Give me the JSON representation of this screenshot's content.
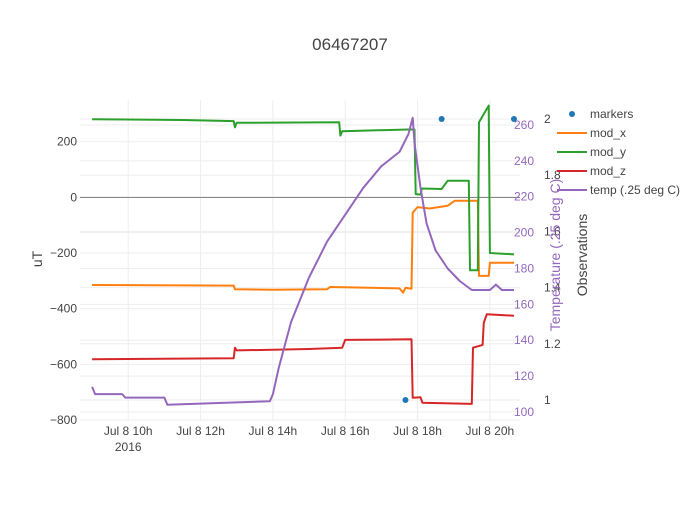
{
  "chart_data": {
    "type": "line",
    "title": "06467207",
    "x_axis": {
      "range": [
        "2016-07-08 08:40",
        "2016-07-08 20:50"
      ],
      "ticks": [
        {
          "t": "2016-07-08 10:00",
          "label": "Jul 8 10h",
          "sub": "2016"
        },
        {
          "t": "2016-07-08 12:00",
          "label": "Jul 8 12h",
          "sub": ""
        },
        {
          "t": "2016-07-08 14:00",
          "label": "Jul 8 14h",
          "sub": ""
        },
        {
          "t": "2016-07-08 16:00",
          "label": "Jul 8 16h",
          "sub": ""
        },
        {
          "t": "2016-07-08 18:00",
          "label": "Jul 8 18h",
          "sub": ""
        },
        {
          "t": "2016-07-08 20:00",
          "label": "Jul 8 20h",
          "sub": ""
        }
      ]
    },
    "y_axis": {
      "title": "uT",
      "range": [
        -800,
        350
      ],
      "ticks": [
        -800,
        -600,
        -400,
        -200,
        0,
        200
      ],
      "tick_labels": [
        "−800",
        "−600",
        "−400",
        "−200",
        "0",
        "200"
      ]
    },
    "y2_axis": {
      "title": "Temperature (.25 deg C)",
      "range": [
        100,
        265
      ],
      "ticks": [
        100,
        120,
        140,
        160,
        180,
        200,
        220,
        240,
        260
      ]
    },
    "y3_axis": {
      "title": "Observations",
      "range": [
        1,
        2
      ],
      "ticks": [
        {
          "v": 1,
          "label": "1"
        },
        {
          "v": 1.2,
          "label": "1.2"
        },
        {
          "v": 1.4,
          "label": "1.4"
        },
        {
          "v": 1.6,
          "label": "1.6"
        },
        {
          "v": 1.8,
          "label": "1.8"
        },
        {
          "v": 2,
          "label": "2"
        }
      ]
    },
    "grid": true,
    "legend_position": "right",
    "series": [
      {
        "name": "markers",
        "mode": "markers",
        "axis": "y3",
        "color": "#1f77b4",
        "points": [
          {
            "t": "2016-07-08 17:40",
            "v": 1
          },
          {
            "t": "2016-07-08 18:40",
            "v": 2
          },
          {
            "t": "2016-07-08 20:40",
            "v": 2
          }
        ]
      },
      {
        "name": "mod_x",
        "axis": "y",
        "color": "#ff7f0e",
        "points": [
          {
            "t": "2016-07-08 09:00",
            "v": -315
          },
          {
            "t": "2016-07-08 12:55",
            "v": -317
          },
          {
            "t": "2016-07-08 12:57",
            "v": -330
          },
          {
            "t": "2016-07-08 14:00",
            "v": -332
          },
          {
            "t": "2016-07-08 15:30",
            "v": -330
          },
          {
            "t": "2016-07-08 15:35",
            "v": -322
          },
          {
            "t": "2016-07-08 17:30",
            "v": -327
          },
          {
            "t": "2016-07-08 17:36",
            "v": -342
          },
          {
            "t": "2016-07-08 17:40",
            "v": -325
          },
          {
            "t": "2016-07-08 17:50",
            "v": -328
          },
          {
            "t": "2016-07-08 17:52",
            "v": -55
          },
          {
            "t": "2016-07-08 18:00",
            "v": -35
          },
          {
            "t": "2016-07-08 18:20",
            "v": -40
          },
          {
            "t": "2016-07-08 18:50",
            "v": -30
          },
          {
            "t": "2016-07-08 19:02",
            "v": -12
          },
          {
            "t": "2016-07-08 19:40",
            "v": -12
          },
          {
            "t": "2016-07-08 19:42",
            "v": -282
          },
          {
            "t": "2016-07-08 19:58",
            "v": -282
          },
          {
            "t": "2016-07-08 20:00",
            "v": -235
          },
          {
            "t": "2016-07-08 20:40",
            "v": -235
          }
        ]
      },
      {
        "name": "mod_y",
        "axis": "y",
        "color": "#2ca02c",
        "points": [
          {
            "t": "2016-07-08 09:00",
            "v": 281
          },
          {
            "t": "2016-07-08 11:30",
            "v": 278
          },
          {
            "t": "2016-07-08 12:55",
            "v": 274
          },
          {
            "t": "2016-07-08 12:57",
            "v": 252
          },
          {
            "t": "2016-07-08 13:00",
            "v": 268
          },
          {
            "t": "2016-07-08 15:50",
            "v": 270
          },
          {
            "t": "2016-07-08 15:52",
            "v": 222
          },
          {
            "t": "2016-07-08 15:55",
            "v": 238
          },
          {
            "t": "2016-07-08 17:45",
            "v": 244
          },
          {
            "t": "2016-07-08 17:55",
            "v": 244
          },
          {
            "t": "2016-07-08 17:57",
            "v": 12
          },
          {
            "t": "2016-07-08 18:05",
            "v": 10
          },
          {
            "t": "2016-07-08 18:07",
            "v": 32
          },
          {
            "t": "2016-07-08 18:40",
            "v": 30
          },
          {
            "t": "2016-07-08 18:50",
            "v": 60
          },
          {
            "t": "2016-07-08 19:25",
            "v": 60
          },
          {
            "t": "2016-07-08 19:27",
            "v": -262
          },
          {
            "t": "2016-07-08 19:40",
            "v": -262
          },
          {
            "t": "2016-07-08 19:42",
            "v": 270
          },
          {
            "t": "2016-07-08 19:58",
            "v": 330
          },
          {
            "t": "2016-07-08 20:00",
            "v": -200
          },
          {
            "t": "2016-07-08 20:40",
            "v": -205
          }
        ]
      },
      {
        "name": "mod_z",
        "axis": "y",
        "color": "#d62728",
        "points": [
          {
            "t": "2016-07-08 09:00",
            "v": -582
          },
          {
            "t": "2016-07-08 12:55",
            "v": -578
          },
          {
            "t": "2016-07-08 12:57",
            "v": -540
          },
          {
            "t": "2016-07-08 13:00",
            "v": -550
          },
          {
            "t": "2016-07-08 15:00",
            "v": -545
          },
          {
            "t": "2016-07-08 15:55",
            "v": -540
          },
          {
            "t": "2016-07-08 16:00",
            "v": -512
          },
          {
            "t": "2016-07-08 17:50",
            "v": -510
          },
          {
            "t": "2016-07-08 17:52",
            "v": -720
          },
          {
            "t": "2016-07-08 18:05",
            "v": -718
          },
          {
            "t": "2016-07-08 18:08",
            "v": -738
          },
          {
            "t": "2016-07-08 19:30",
            "v": -742
          },
          {
            "t": "2016-07-08 19:32",
            "v": -540
          },
          {
            "t": "2016-07-08 19:48",
            "v": -530
          },
          {
            "t": "2016-07-08 19:50",
            "v": -450
          },
          {
            "t": "2016-07-08 19:55",
            "v": -420
          },
          {
            "t": "2016-07-08 20:40",
            "v": -425
          }
        ]
      },
      {
        "name": "temp (.25 deg C)",
        "axis": "y2",
        "color": "#9467bd",
        "points": [
          {
            "t": "2016-07-08 09:00",
            "v": 114
          },
          {
            "t": "2016-07-08 09:05",
            "v": 110
          },
          {
            "t": "2016-07-08 09:50",
            "v": 110
          },
          {
            "t": "2016-07-08 09:55",
            "v": 108
          },
          {
            "t": "2016-07-08 11:00",
            "v": 108
          },
          {
            "t": "2016-07-08 11:05",
            "v": 104
          },
          {
            "t": "2016-07-08 13:55",
            "v": 106
          },
          {
            "t": "2016-07-08 14:00",
            "v": 110
          },
          {
            "t": "2016-07-08 14:10",
            "v": 125
          },
          {
            "t": "2016-07-08 14:30",
            "v": 150
          },
          {
            "t": "2016-07-08 15:00",
            "v": 175
          },
          {
            "t": "2016-07-08 15:30",
            "v": 195
          },
          {
            "t": "2016-07-08 16:00",
            "v": 210
          },
          {
            "t": "2016-07-08 16:30",
            "v": 225
          },
          {
            "t": "2016-07-08 17:00",
            "v": 237
          },
          {
            "t": "2016-07-08 17:30",
            "v": 245
          },
          {
            "t": "2016-07-08 17:45",
            "v": 255
          },
          {
            "t": "2016-07-08 17:52",
            "v": 264
          },
          {
            "t": "2016-07-08 17:55",
            "v": 250
          },
          {
            "t": "2016-07-08 18:05",
            "v": 225
          },
          {
            "t": "2016-07-08 18:15",
            "v": 205
          },
          {
            "t": "2016-07-08 18:30",
            "v": 190
          },
          {
            "t": "2016-07-08 18:50",
            "v": 180
          },
          {
            "t": "2016-07-08 19:10",
            "v": 173
          },
          {
            "t": "2016-07-08 19:30",
            "v": 168
          },
          {
            "t": "2016-07-08 20:00",
            "v": 168
          },
          {
            "t": "2016-07-08 20:10",
            "v": 171
          },
          {
            "t": "2016-07-08 20:20",
            "v": 168
          },
          {
            "t": "2016-07-08 20:40",
            "v": 168
          }
        ]
      }
    ]
  }
}
